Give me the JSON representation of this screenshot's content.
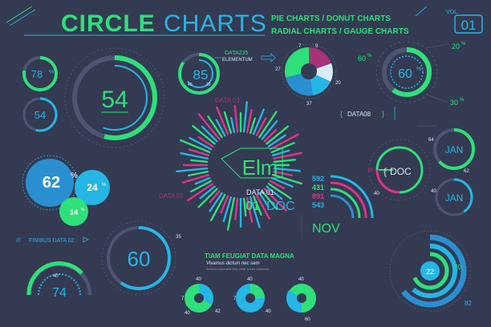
{
  "colors": {
    "background": "#343a52",
    "green": "#2ee07a",
    "cyan": "#25b6e6",
    "magenta": "#e0338a",
    "light": "#d7ecf7",
    "grid": "#4d5572"
  },
  "header": {
    "title_a": "CIRCLE",
    "title_b": "CHARTS",
    "subtitle_line1": "PIE CHARTS / DONUT CHARTS",
    "subtitle_line2": "RADIAL CHARTS / GAUGE CHARTS",
    "vol_label": "VOL.",
    "vol_value": "01"
  },
  "gauges": {
    "small_78": "78",
    "small_78_unit": "%",
    "small_54": "54",
    "big_54": "54",
    "c85": "85",
    "c85_a": "40",
    "c85_b": "20",
    "c60": "60",
    "c60_unit": "%",
    "c60_tl": "60",
    "c60_tr": "20",
    "c60_br": "30",
    "pct_unit": "%"
  },
  "pie": {
    "label_7": "7",
    "label_9": "9",
    "label_27": "27",
    "label_20": "20",
    "label_37": "37"
  },
  "labels": {
    "data235": "DATA235",
    "elementum": "ELEMENTUM",
    "data03": "DATA 03",
    "data08": "DATA08",
    "data02": "DATA 02",
    "finibus": "FINIBUS DATA 02",
    "center_word": "Elm",
    "data01": "DATA 01",
    "doc_big_num": "01",
    "doc_big_word": "DOC",
    "tiam_title": "TIAM FEUGIAT DATA MAGNA",
    "tiam_sub": "Vivamus dictum nec sem",
    "tiam_small": "Aenean imperdiet felis vitae auctor interdum"
  },
  "stats": {
    "v592": "592",
    "v431": "431",
    "v891": "891",
    "v543": "543",
    "nov": "NOV"
  },
  "right": {
    "doc_label": "DOC",
    "doc_10": "10",
    "doc_40": "40",
    "jan1": "JAN",
    "jan1_64": "64",
    "jan1_62": "62",
    "jan2": "JAN",
    "jan2_40": "40",
    "concentric_22": "22",
    "concentric_70": "70",
    "concentric_82": "82"
  },
  "bubbles": {
    "b62": "62",
    "b24": "24",
    "b14": "14"
  },
  "bottom": {
    "g60": "60",
    "g60_35": "35",
    "g74": "74",
    "g74_40": "40",
    "s1_40": "40",
    "s1_7": "7",
    "s1_40b": "40",
    "s1_42": "42",
    "s2_40": "40",
    "s2_7": "7",
    "s2_40b": "40",
    "s3_40": "40",
    "s3_60": "60"
  }
}
